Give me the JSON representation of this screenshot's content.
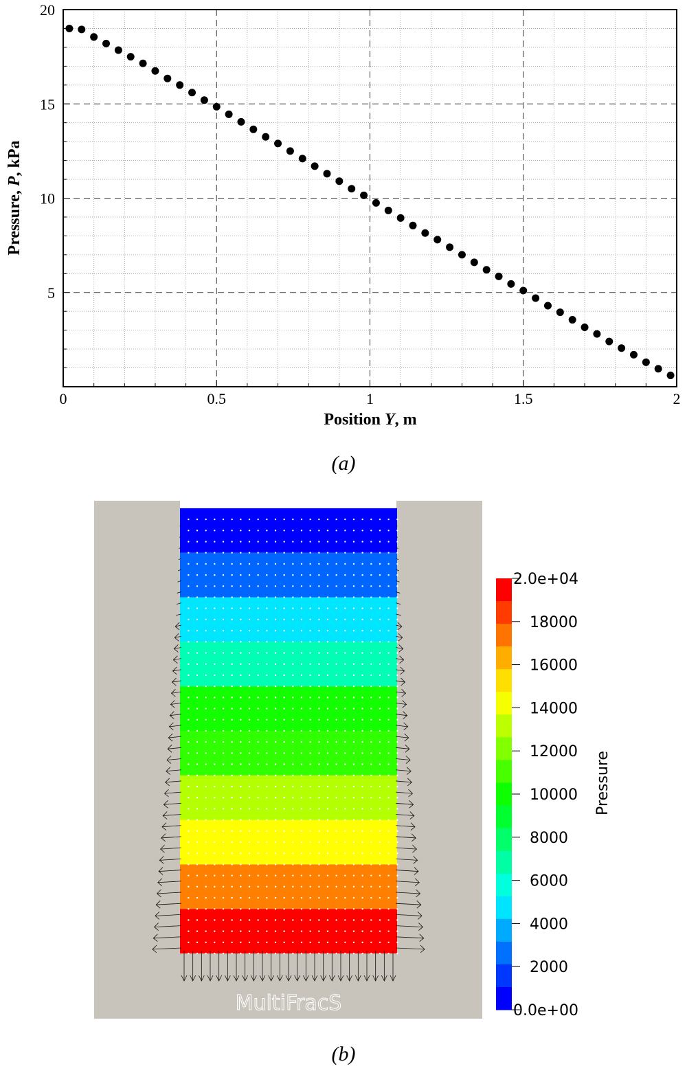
{
  "chart_data": [
    {
      "type": "scatter",
      "xlabel_parts": [
        "Position ",
        "Y",
        ", m"
      ],
      "ylabel_parts": [
        "Pressure, ",
        "P",
        ", kPa"
      ],
      "xlim": [
        0,
        2
      ],
      "ylim": [
        0,
        20
      ],
      "x_ticks": [
        "0",
        "0.5",
        "1",
        "1.5",
        "2"
      ],
      "y_ticks": [
        "5",
        "10",
        "15",
        "20"
      ],
      "grid": "on",
      "series": [
        {
          "color": "#000000",
          "x": [
            0.02,
            0.06,
            0.1,
            0.14,
            0.18,
            0.22,
            0.26,
            0.3,
            0.34,
            0.38,
            0.42,
            0.46,
            0.5,
            0.54,
            0.58,
            0.62,
            0.66,
            0.7,
            0.74,
            0.78,
            0.82,
            0.86,
            0.9,
            0.94,
            0.98,
            1.02,
            1.06,
            1.1,
            1.14,
            1.18,
            1.22,
            1.26,
            1.3,
            1.34,
            1.38,
            1.42,
            1.46,
            1.5,
            1.54,
            1.58,
            1.62,
            1.66,
            1.7,
            1.74,
            1.78,
            1.82,
            1.86,
            1.9,
            1.94,
            1.98
          ],
          "y": [
            19.0,
            18.95,
            18.55,
            18.2,
            17.85,
            17.5,
            17.15,
            16.75,
            16.35,
            16.0,
            15.6,
            15.2,
            14.85,
            14.45,
            14.05,
            13.65,
            13.25,
            12.9,
            12.5,
            12.1,
            11.7,
            11.3,
            10.9,
            10.5,
            10.15,
            9.75,
            9.35,
            8.95,
            8.55,
            8.15,
            7.8,
            7.4,
            7.0,
            6.6,
            6.2,
            5.85,
            5.45,
            5.1,
            4.7,
            4.3,
            3.95,
            3.55,
            3.15,
            2.8,
            2.4,
            2.05,
            1.7,
            1.3,
            0.95,
            0.6
          ]
        }
      ],
      "caption": "(a)"
    },
    {
      "type": "heatmap",
      "colorbar_label": "Pressure",
      "colorbar_ticks": [
        "2.0e+04",
        "18000",
        "16000",
        "14000",
        "12000",
        "10000",
        "8000",
        "6000",
        "4000",
        "2000",
        "0.0e+00"
      ],
      "colorbar_range": [
        0,
        20000
      ],
      "colorbar_colors": [
        "#ff0000",
        "#ff3b00",
        "#ff7400",
        "#ffae00",
        "#ffdf00",
        "#f5ff00",
        "#bcff00",
        "#82ff00",
        "#48ff00",
        "#0eff00",
        "#00ff30",
        "#00ff6b",
        "#00ffa4",
        "#00ffdd",
        "#00e4ff",
        "#00abff",
        "#0070ff",
        "#0037ff",
        "#0000ff"
      ],
      "band_colors": [
        "#0000ff",
        "#0066ff",
        "#00e6ff",
        "#00ffb4",
        "#13ff00",
        "#30ff00",
        "#b4ff00",
        "#ffff00",
        "#ff7f00",
        "#ff0000"
      ],
      "watermark": "MultiFracS",
      "caption": "(b)"
    }
  ]
}
